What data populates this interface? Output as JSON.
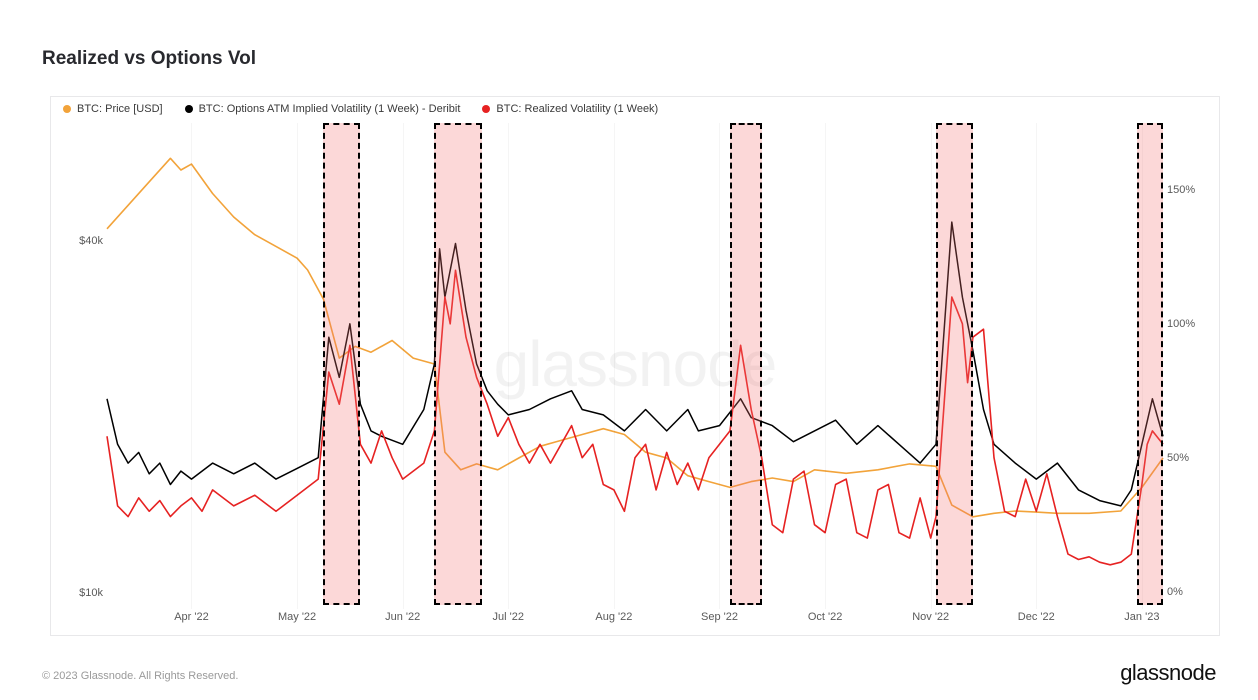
{
  "title": "Realized vs Options Vol",
  "footer": "© 2023 Glassnode. All Rights Reserved.",
  "brand": "glassnode",
  "watermark": "glassnode",
  "chart": {
    "type": "line",
    "background_color": "#ffffff",
    "border_color": "#e8e8ea",
    "grid_color": "rgba(0,0,0,0.04)",
    "legend": [
      {
        "label": "BTC: Price [USD]",
        "color": "#f2a33a"
      },
      {
        "label": "BTC: Options ATM Implied Volatility (1 Week) - Deribit",
        "color": "#000000"
      },
      {
        "label": "BTC: Realized Volatility (1 Week)",
        "color": "#e62222"
      }
    ],
    "x_ticks": [
      {
        "label": "Apr '22",
        "t": 0.08
      },
      {
        "label": "May '22",
        "t": 0.18
      },
      {
        "label": "Jun '22",
        "t": 0.28
      },
      {
        "label": "Jul '22",
        "t": 0.38
      },
      {
        "label": "Aug '22",
        "t": 0.48
      },
      {
        "label": "Sep '22",
        "t": 0.58
      },
      {
        "label": "Oct '22",
        "t": 0.68
      },
      {
        "label": "Nov '22",
        "t": 0.78
      },
      {
        "label": "Dec '22",
        "t": 0.88
      },
      {
        "label": "Jan '23",
        "t": 0.98
      }
    ],
    "y_left": {
      "label_fontsize": 11,
      "ticks": [
        {
          "label": "$10k",
          "v": 10000
        },
        {
          "label": "$40k",
          "v": 40000
        }
      ],
      "min": 9000,
      "max": 50000
    },
    "y_right": {
      "label_fontsize": 11,
      "ticks": [
        {
          "label": "0%",
          "v": 0
        },
        {
          "label": "50%",
          "v": 50
        },
        {
          "label": "100%",
          "v": 100
        },
        {
          "label": "150%",
          "v": 150
        }
      ],
      "min": -5,
      "max": 175
    },
    "highlight_bands": [
      {
        "t0": 0.205,
        "t1": 0.24,
        "fill": "rgba(244,115,115,0.28)",
        "stroke": "#000000",
        "dash": "6 5"
      },
      {
        "t0": 0.31,
        "t1": 0.355,
        "fill": "rgba(244,115,115,0.28)",
        "stroke": "#000000",
        "dash": "6 5"
      },
      {
        "t0": 0.59,
        "t1": 0.62,
        "fill": "rgba(244,115,115,0.28)",
        "stroke": "#000000",
        "dash": "6 5"
      },
      {
        "t0": 0.785,
        "t1": 0.82,
        "fill": "rgba(244,115,115,0.28)",
        "stroke": "#000000",
        "dash": "6 5"
      },
      {
        "t0": 0.975,
        "t1": 1.0,
        "fill": "rgba(244,115,115,0.28)",
        "stroke": "#000000",
        "dash": "6 5"
      }
    ],
    "series": [
      {
        "name": "price",
        "axis": "left",
        "color": "#f2a33a",
        "line_width": 1.6,
        "points": [
          [
            0.0,
            41000
          ],
          [
            0.02,
            43000
          ],
          [
            0.04,
            45000
          ],
          [
            0.06,
            47000
          ],
          [
            0.07,
            46000
          ],
          [
            0.08,
            46500
          ],
          [
            0.1,
            44000
          ],
          [
            0.12,
            42000
          ],
          [
            0.14,
            40500
          ],
          [
            0.16,
            39500
          ],
          [
            0.18,
            38500
          ],
          [
            0.19,
            37500
          ],
          [
            0.205,
            35000
          ],
          [
            0.22,
            30000
          ],
          [
            0.235,
            31000
          ],
          [
            0.25,
            30500
          ],
          [
            0.27,
            31500
          ],
          [
            0.29,
            30000
          ],
          [
            0.31,
            29500
          ],
          [
            0.32,
            22000
          ],
          [
            0.335,
            20500
          ],
          [
            0.35,
            21000
          ],
          [
            0.37,
            20500
          ],
          [
            0.39,
            21500
          ],
          [
            0.41,
            22500
          ],
          [
            0.43,
            23000
          ],
          [
            0.45,
            23500
          ],
          [
            0.47,
            24000
          ],
          [
            0.49,
            23500
          ],
          [
            0.51,
            22000
          ],
          [
            0.53,
            21500
          ],
          [
            0.55,
            20000
          ],
          [
            0.57,
            19500
          ],
          [
            0.59,
            19000
          ],
          [
            0.61,
            19500
          ],
          [
            0.63,
            19800
          ],
          [
            0.65,
            19500
          ],
          [
            0.67,
            20500
          ],
          [
            0.7,
            20200
          ],
          [
            0.73,
            20500
          ],
          [
            0.76,
            21000
          ],
          [
            0.785,
            20800
          ],
          [
            0.8,
            17500
          ],
          [
            0.82,
            16500
          ],
          [
            0.84,
            16800
          ],
          [
            0.86,
            17000
          ],
          [
            0.88,
            16900
          ],
          [
            0.9,
            16800
          ],
          [
            0.93,
            16800
          ],
          [
            0.96,
            17000
          ],
          [
            0.98,
            19000
          ],
          [
            1.0,
            21500
          ]
        ]
      },
      {
        "name": "implied_vol",
        "axis": "right",
        "color": "#000000",
        "line_width": 1.5,
        "points": [
          [
            0.0,
            72
          ],
          [
            0.01,
            55
          ],
          [
            0.02,
            48
          ],
          [
            0.03,
            52
          ],
          [
            0.04,
            44
          ],
          [
            0.05,
            48
          ],
          [
            0.06,
            40
          ],
          [
            0.07,
            45
          ],
          [
            0.08,
            42
          ],
          [
            0.1,
            48
          ],
          [
            0.12,
            44
          ],
          [
            0.14,
            48
          ],
          [
            0.16,
            42
          ],
          [
            0.18,
            46
          ],
          [
            0.2,
            50
          ],
          [
            0.21,
            95
          ],
          [
            0.22,
            80
          ],
          [
            0.23,
            100
          ],
          [
            0.24,
            70
          ],
          [
            0.25,
            60
          ],
          [
            0.26,
            58
          ],
          [
            0.28,
            55
          ],
          [
            0.3,
            68
          ],
          [
            0.31,
            85
          ],
          [
            0.315,
            128
          ],
          [
            0.32,
            110
          ],
          [
            0.33,
            130
          ],
          [
            0.34,
            105
          ],
          [
            0.35,
            85
          ],
          [
            0.36,
            75
          ],
          [
            0.37,
            70
          ],
          [
            0.38,
            66
          ],
          [
            0.4,
            68
          ],
          [
            0.42,
            72
          ],
          [
            0.44,
            75
          ],
          [
            0.45,
            68
          ],
          [
            0.47,
            66
          ],
          [
            0.49,
            60
          ],
          [
            0.51,
            68
          ],
          [
            0.53,
            60
          ],
          [
            0.55,
            68
          ],
          [
            0.56,
            60
          ],
          [
            0.58,
            62
          ],
          [
            0.6,
            72
          ],
          [
            0.61,
            65
          ],
          [
            0.63,
            62
          ],
          [
            0.65,
            56
          ],
          [
            0.67,
            60
          ],
          [
            0.69,
            64
          ],
          [
            0.71,
            55
          ],
          [
            0.73,
            62
          ],
          [
            0.75,
            55
          ],
          [
            0.77,
            48
          ],
          [
            0.785,
            55
          ],
          [
            0.8,
            138
          ],
          [
            0.81,
            110
          ],
          [
            0.82,
            90
          ],
          [
            0.83,
            68
          ],
          [
            0.84,
            55
          ],
          [
            0.86,
            48
          ],
          [
            0.88,
            42
          ],
          [
            0.9,
            48
          ],
          [
            0.92,
            38
          ],
          [
            0.94,
            34
          ],
          [
            0.96,
            32
          ],
          [
            0.97,
            38
          ],
          [
            0.98,
            55
          ],
          [
            0.99,
            72
          ],
          [
            1.0,
            58
          ]
        ]
      },
      {
        "name": "realized_vol",
        "axis": "right",
        "color": "#e62222",
        "line_width": 1.6,
        "points": [
          [
            0.0,
            58
          ],
          [
            0.01,
            32
          ],
          [
            0.02,
            28
          ],
          [
            0.03,
            35
          ],
          [
            0.04,
            30
          ],
          [
            0.05,
            34
          ],
          [
            0.06,
            28
          ],
          [
            0.07,
            32
          ],
          [
            0.08,
            35
          ],
          [
            0.09,
            30
          ],
          [
            0.1,
            38
          ],
          [
            0.12,
            32
          ],
          [
            0.14,
            36
          ],
          [
            0.16,
            30
          ],
          [
            0.18,
            36
          ],
          [
            0.2,
            42
          ],
          [
            0.21,
            82
          ],
          [
            0.22,
            70
          ],
          [
            0.23,
            92
          ],
          [
            0.24,
            55
          ],
          [
            0.25,
            48
          ],
          [
            0.26,
            60
          ],
          [
            0.27,
            50
          ],
          [
            0.28,
            42
          ],
          [
            0.3,
            48
          ],
          [
            0.31,
            60
          ],
          [
            0.32,
            110
          ],
          [
            0.325,
            100
          ],
          [
            0.33,
            120
          ],
          [
            0.34,
            95
          ],
          [
            0.35,
            80
          ],
          [
            0.36,
            70
          ],
          [
            0.37,
            58
          ],
          [
            0.38,
            65
          ],
          [
            0.39,
            55
          ],
          [
            0.4,
            48
          ],
          [
            0.41,
            55
          ],
          [
            0.42,
            48
          ],
          [
            0.43,
            55
          ],
          [
            0.44,
            62
          ],
          [
            0.45,
            50
          ],
          [
            0.46,
            55
          ],
          [
            0.47,
            40
          ],
          [
            0.48,
            38
          ],
          [
            0.49,
            30
          ],
          [
            0.5,
            50
          ],
          [
            0.51,
            55
          ],
          [
            0.52,
            38
          ],
          [
            0.53,
            52
          ],
          [
            0.54,
            40
          ],
          [
            0.55,
            48
          ],
          [
            0.56,
            38
          ],
          [
            0.57,
            50
          ],
          [
            0.58,
            55
          ],
          [
            0.59,
            60
          ],
          [
            0.6,
            92
          ],
          [
            0.61,
            68
          ],
          [
            0.62,
            50
          ],
          [
            0.63,
            25
          ],
          [
            0.64,
            22
          ],
          [
            0.65,
            42
          ],
          [
            0.66,
            45
          ],
          [
            0.67,
            25
          ],
          [
            0.68,
            22
          ],
          [
            0.69,
            40
          ],
          [
            0.7,
            42
          ],
          [
            0.71,
            22
          ],
          [
            0.72,
            20
          ],
          [
            0.73,
            38
          ],
          [
            0.74,
            40
          ],
          [
            0.75,
            22
          ],
          [
            0.76,
            20
          ],
          [
            0.77,
            35
          ],
          [
            0.78,
            20
          ],
          [
            0.785,
            28
          ],
          [
            0.8,
            110
          ],
          [
            0.81,
            100
          ],
          [
            0.815,
            78
          ],
          [
            0.82,
            95
          ],
          [
            0.83,
            98
          ],
          [
            0.84,
            50
          ],
          [
            0.85,
            30
          ],
          [
            0.86,
            28
          ],
          [
            0.87,
            42
          ],
          [
            0.88,
            30
          ],
          [
            0.89,
            44
          ],
          [
            0.9,
            28
          ],
          [
            0.91,
            14
          ],
          [
            0.92,
            12
          ],
          [
            0.93,
            13
          ],
          [
            0.94,
            11
          ],
          [
            0.95,
            10
          ],
          [
            0.96,
            11
          ],
          [
            0.97,
            14
          ],
          [
            0.98,
            40
          ],
          [
            0.985,
            55
          ],
          [
            0.99,
            60
          ],
          [
            1.0,
            55
          ]
        ]
      }
    ]
  }
}
